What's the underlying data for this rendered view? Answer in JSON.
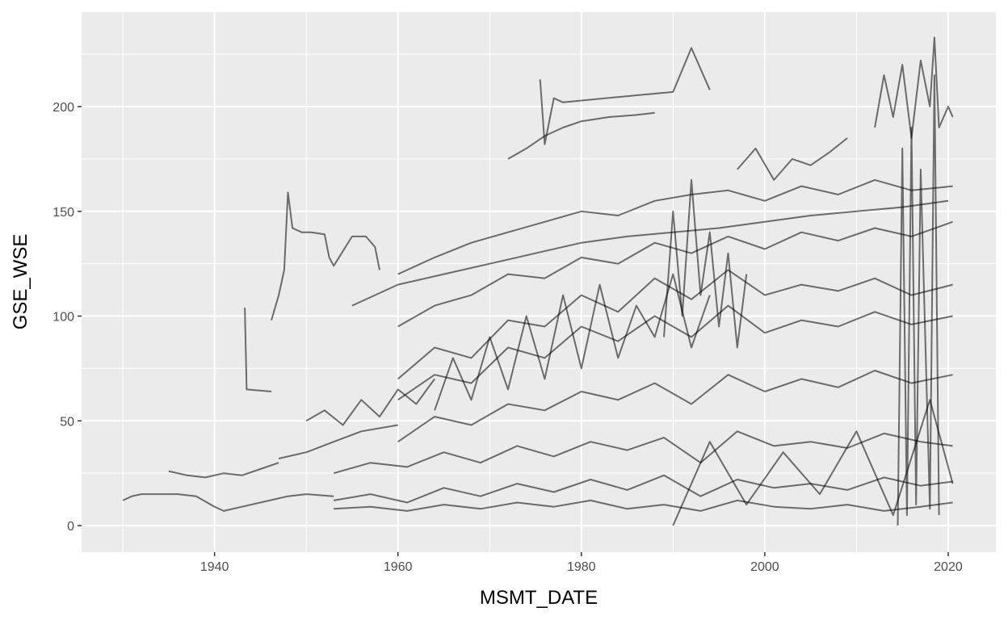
{
  "chart_data": {
    "type": "line",
    "x_label": "MSMT_DATE",
    "y_label": "GSE_WSE",
    "xlim": [
      1925.5,
      2025.2
    ],
    "ylim": [
      -12.7,
      245.1
    ],
    "xticks": [
      1940,
      1960,
      1980,
      2000,
      2020
    ],
    "yticks": [
      0,
      50,
      100,
      150,
      200
    ],
    "x_minor_ticks": [
      1930,
      1950,
      1970,
      1990,
      2010
    ],
    "y_minor_ticks": [
      25,
      75,
      125,
      175,
      225
    ],
    "grid": true,
    "color": "#000000",
    "opacity": 0.55,
    "series": [
      {
        "x": [
          1930,
          1931,
          1932,
          1934,
          1936,
          1938,
          1940,
          1941,
          1943,
          1946,
          1948,
          1950,
          1953
        ],
        "values": [
          12,
          14,
          15,
          15,
          15,
          14,
          9,
          7,
          9,
          12,
          14,
          15,
          14
        ]
      },
      {
        "x": [
          1935,
          1937,
          1939,
          1941,
          1943,
          1945,
          1947
        ],
        "values": [
          26,
          24,
          23,
          25,
          24,
          27,
          30
        ]
      },
      {
        "x": [
          1943.3,
          1943.5,
          1946.2
        ],
        "values": [
          104,
          65,
          64
        ]
      },
      {
        "x": [
          1946.2,
          1947,
          1947.6,
          1948,
          1948.5,
          1949.5,
          1950.5,
          1952,
          1952.5,
          1953,
          1955,
          1956.5,
          1957.5,
          1958
        ],
        "values": [
          98,
          110,
          122,
          159,
          142,
          140,
          140,
          139,
          128,
          124,
          138,
          138,
          133,
          122
        ]
      },
      {
        "x": [
          1972,
          1974,
          1976,
          1978,
          1980,
          1983,
          1986,
          1988
        ],
        "values": [
          175,
          180,
          186,
          190,
          193,
          195,
          196,
          197
        ]
      },
      {
        "x": [
          1975.5,
          1976,
          1977,
          1978,
          1985,
          1990,
          1992,
          1994
        ],
        "values": [
          213,
          182,
          204,
          202,
          205,
          207,
          228,
          208
        ]
      },
      {
        "x": [
          1953,
          1957,
          1961,
          1965,
          1969,
          1973,
          1977,
          1981,
          1985,
          1989,
          1993,
          1997,
          2001,
          2005,
          2009,
          2013,
          2017,
          2020.5
        ],
        "values": [
          8,
          9,
          7,
          10,
          8,
          11,
          9,
          12,
          8,
          10,
          7,
          12,
          9,
          8,
          10,
          7,
          9,
          11
        ]
      },
      {
        "x": [
          1953,
          1957,
          1961,
          1965,
          1969,
          1973,
          1977,
          1981,
          1985,
          1989,
          1993,
          1997,
          2001,
          2005,
          2009,
          2013,
          2017,
          2020.5
        ],
        "values": [
          12,
          15,
          11,
          18,
          14,
          20,
          16,
          22,
          17,
          24,
          14,
          22,
          18,
          20,
          17,
          23,
          19,
          21
        ]
      },
      {
        "x": [
          1953,
          1957,
          1961,
          1965,
          1969,
          1973,
          1977,
          1981,
          1985,
          1989,
          1993,
          1997,
          2001,
          2005,
          2009,
          2013,
          2017,
          2020.5
        ],
        "values": [
          25,
          30,
          28,
          35,
          30,
          38,
          33,
          40,
          36,
          42,
          30,
          45,
          38,
          40,
          37,
          44,
          40,
          38
        ]
      },
      {
        "x": [
          1960,
          1964,
          1968,
          1972,
          1976,
          1980,
          1984,
          1988,
          1992,
          1996,
          2000,
          2004,
          2008,
          2012,
          2016,
          2020.5
        ],
        "values": [
          40,
          52,
          48,
          58,
          55,
          64,
          60,
          68,
          58,
          72,
          64,
          70,
          66,
          74,
          68,
          72
        ]
      },
      {
        "x": [
          1960,
          1964,
          1968,
          1972,
          1976,
          1980,
          1984,
          1988,
          1992,
          1996,
          2000,
          2004,
          2008,
          2012,
          2016,
          2020.5
        ],
        "values": [
          60,
          72,
          68,
          85,
          80,
          95,
          88,
          100,
          90,
          105,
          92,
          98,
          95,
          102,
          96,
          100
        ]
      },
      {
        "x": [
          1960,
          1964,
          1968,
          1972,
          1976,
          1980,
          1984,
          1988,
          1992,
          1996,
          2000,
          2004,
          2008,
          2012,
          2016,
          2020.5
        ],
        "values": [
          70,
          85,
          80,
          98,
          95,
          110,
          102,
          118,
          108,
          122,
          110,
          115,
          112,
          118,
          110,
          115
        ]
      },
      {
        "x": [
          1960,
          1964,
          1968,
          1972,
          1976,
          1980,
          1984,
          1988,
          1992,
          1996,
          2000,
          2004,
          2008,
          2012,
          2016,
          2020.5
        ],
        "values": [
          95,
          105,
          110,
          120,
          118,
          128,
          125,
          135,
          130,
          138,
          132,
          140,
          136,
          142,
          138,
          145
        ]
      },
      {
        "x": [
          1960,
          1964,
          1968,
          1972,
          1976,
          1980,
          1984,
          1988,
          1992,
          1996,
          2000,
          2004,
          2008,
          2012,
          2016,
          2020.5
        ],
        "values": [
          120,
          128,
          135,
          140,
          145,
          150,
          148,
          155,
          158,
          160,
          155,
          162,
          158,
          165,
          160,
          162
        ]
      },
      {
        "x": [
          1955,
          1960,
          1965,
          1970,
          1975,
          1980,
          1985,
          1990,
          1995,
          2000,
          2005,
          2010,
          2015,
          2020
        ],
        "values": [
          105,
          115,
          120,
          125,
          130,
          135,
          138,
          140,
          142,
          145,
          148,
          150,
          152,
          155
        ]
      },
      {
        "x": [
          1964,
          1966,
          1968,
          1970,
          1972,
          1974,
          1976,
          1978,
          1980,
          1982,
          1984,
          1986,
          1988,
          1990,
          1992,
          1994
        ],
        "values": [
          55,
          80,
          60,
          90,
          65,
          100,
          70,
          110,
          75,
          115,
          80,
          105,
          90,
          120,
          85,
          110
        ]
      },
      {
        "x": [
          2012,
          2013,
          2014,
          2015,
          2016,
          2017,
          2018,
          2018.5,
          2019,
          2020,
          2020.5
        ],
        "values": [
          190,
          215,
          195,
          220,
          185,
          222,
          200,
          233,
          190,
          200,
          195
        ]
      },
      {
        "x": [
          2014.5,
          2015,
          2015.5,
          2016,
          2016.5,
          2017,
          2018,
          2018.5,
          2019
        ],
        "values": [
          0,
          180,
          5,
          190,
          10,
          170,
          8,
          215,
          5
        ]
      },
      {
        "x": [
          1989,
          1990,
          1991,
          1992,
          1993,
          1994,
          1995,
          1996,
          1997,
          1998
        ],
        "values": [
          90,
          150,
          100,
          165,
          110,
          140,
          95,
          130,
          85,
          120
        ]
      },
      {
        "x": [
          1950,
          1952,
          1954,
          1956,
          1958,
          1960,
          1962,
          1964
        ],
        "values": [
          50,
          55,
          48,
          60,
          52,
          65,
          58,
          70
        ]
      },
      {
        "x": [
          1947,
          1950,
          1953,
          1956,
          1960
        ],
        "values": [
          32,
          35,
          40,
          45,
          48
        ]
      },
      {
        "x": [
          1990,
          1994,
          1998,
          2002,
          2006,
          2010,
          2014,
          2018,
          2020.5
        ],
        "values": [
          0,
          40,
          10,
          35,
          15,
          45,
          5,
          60,
          20
        ]
      },
      {
        "x": [
          1997,
          1999,
          2001,
          2003,
          2005,
          2007,
          2009
        ],
        "values": [
          170,
          180,
          165,
          175,
          172,
          178,
          185
        ]
      }
    ]
  }
}
